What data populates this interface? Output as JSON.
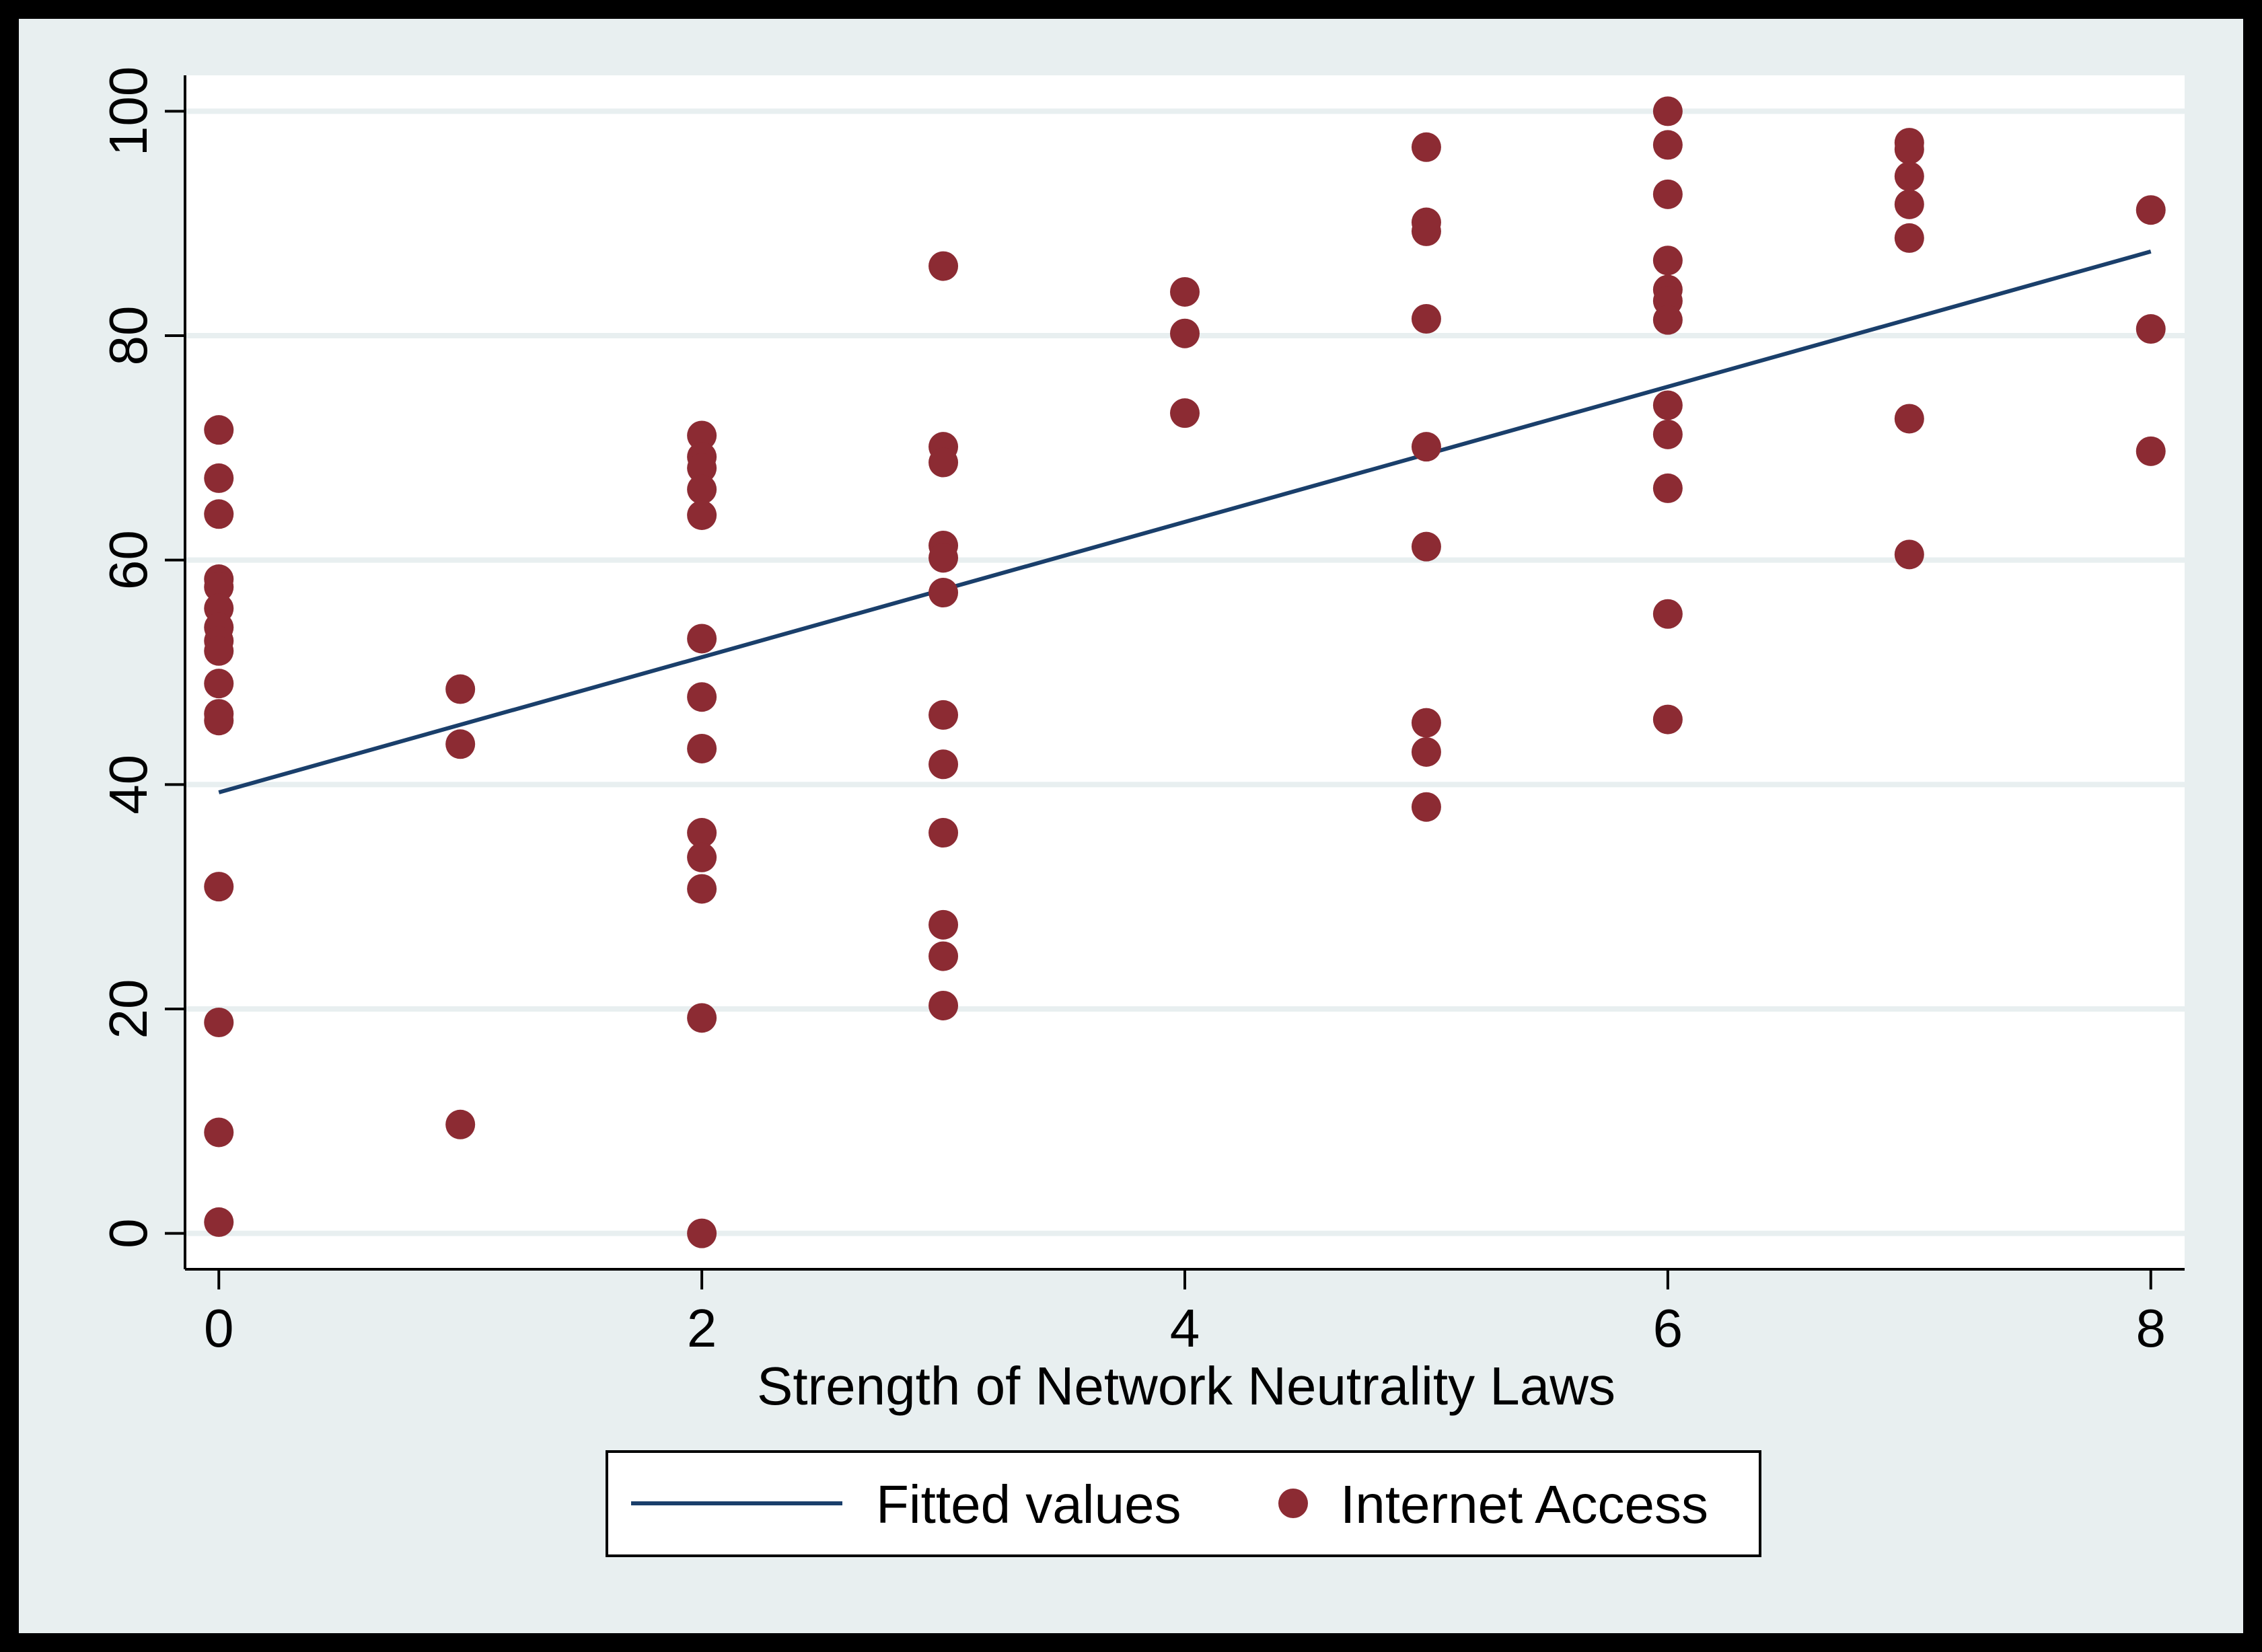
{
  "chart_data": {
    "type": "scatter",
    "title": "",
    "xlabel": "Strength of Network Neutrality Laws",
    "ylabel": "",
    "xlim": [
      -0.14,
      8.14
    ],
    "ylim": [
      -3.2,
      103.2
    ],
    "x_ticks": [
      0,
      2,
      4,
      6,
      8
    ],
    "y_ticks": [
      0,
      20,
      40,
      60,
      80,
      100
    ],
    "grid": true,
    "legend_position": "bottom",
    "colors": {
      "outer_background": "#e8eff0",
      "plot_background": "#ffffff",
      "gridline": "#e8eff0",
      "scatter": "#8c2b33",
      "fit_line": "#1a3f6b"
    },
    "series": [
      {
        "name": "Fitted values",
        "kind": "line",
        "x": [
          0,
          8
        ],
        "y": [
          39.3,
          87.5
        ]
      },
      {
        "name": "Internet Access",
        "kind": "scatter",
        "points": [
          [
            0,
            71.6
          ],
          [
            0,
            67.3
          ],
          [
            0,
            64.1
          ],
          [
            0,
            58.3
          ],
          [
            0,
            57.6
          ],
          [
            0,
            55.7
          ],
          [
            0,
            54.0
          ],
          [
            0,
            52.8
          ],
          [
            0,
            51.9
          ],
          [
            0,
            49.0
          ],
          [
            0,
            46.3
          ],
          [
            0,
            45.7
          ],
          [
            0,
            30.9
          ],
          [
            0,
            18.8
          ],
          [
            0,
            9.0
          ],
          [
            0,
            1.0
          ],
          [
            1,
            48.5
          ],
          [
            1,
            43.6
          ],
          [
            1,
            9.7
          ],
          [
            2,
            71.1
          ],
          [
            2,
            69.2
          ],
          [
            2,
            68.2
          ],
          [
            2,
            66.3
          ],
          [
            2,
            64.0
          ],
          [
            2,
            53.0
          ],
          [
            2,
            47.8
          ],
          [
            2,
            43.2
          ],
          [
            2,
            35.7
          ],
          [
            2,
            33.5
          ],
          [
            2,
            30.7
          ],
          [
            2,
            19.2
          ],
          [
            2,
            0.0
          ],
          [
            3,
            86.2
          ],
          [
            3,
            70.1
          ],
          [
            3,
            68.7
          ],
          [
            3,
            61.3
          ],
          [
            3,
            60.2
          ],
          [
            3,
            57.1
          ],
          [
            3,
            46.2
          ],
          [
            3,
            41.8
          ],
          [
            3,
            35.7
          ],
          [
            3,
            27.5
          ],
          [
            3,
            24.7
          ],
          [
            3,
            20.3
          ],
          [
            4,
            83.9
          ],
          [
            4,
            80.2
          ],
          [
            4,
            73.1
          ],
          [
            5,
            96.8
          ],
          [
            5,
            90.1
          ],
          [
            5,
            89.3
          ],
          [
            5,
            81.5
          ],
          [
            5,
            70.1
          ],
          [
            5,
            61.2
          ],
          [
            5,
            45.5
          ],
          [
            5,
            42.9
          ],
          [
            5,
            38.0
          ],
          [
            6,
            100.0
          ],
          [
            6,
            97.0
          ],
          [
            6,
            92.6
          ],
          [
            6,
            86.7
          ],
          [
            6,
            84.1
          ],
          [
            6,
            83.1
          ],
          [
            6,
            81.4
          ],
          [
            6,
            73.8
          ],
          [
            6,
            71.2
          ],
          [
            6,
            66.4
          ],
          [
            6,
            55.2
          ],
          [
            6,
            45.8
          ],
          [
            7,
            97.2
          ],
          [
            7,
            96.6
          ],
          [
            7,
            94.2
          ],
          [
            7,
            91.7
          ],
          [
            7,
            88.7
          ],
          [
            7,
            72.6
          ],
          [
            7,
            60.5
          ],
          [
            8,
            91.2
          ],
          [
            8,
            80.6
          ],
          [
            8,
            69.7
          ]
        ]
      }
    ]
  }
}
